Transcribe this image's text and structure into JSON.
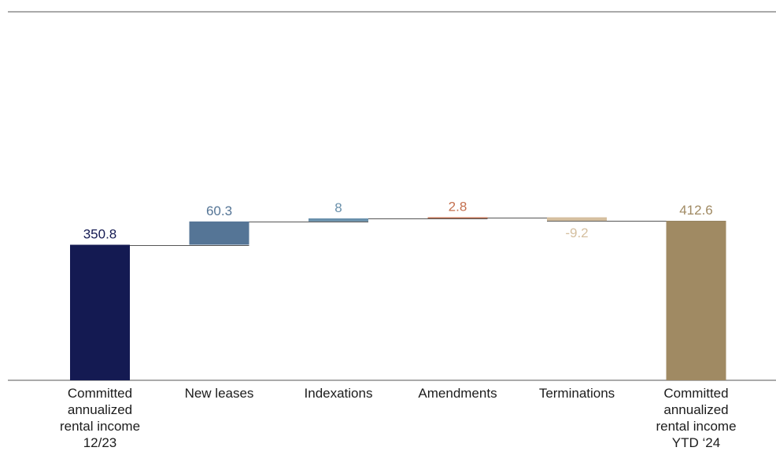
{
  "chart_data": {
    "type": "bar",
    "subtype": "waterfall",
    "categories": [
      "Committed annualized rental income 12/23",
      "New leases",
      "Indexations",
      "Amendments",
      "Terminations",
      "Committed annualized rental income YTD ‘24"
    ],
    "category_lines": [
      [
        "Committed",
        "annualized",
        "rental income",
        "12/23"
      ],
      [
        "New leases"
      ],
      [
        "Indexations"
      ],
      [
        "Amendments"
      ],
      [
        "Terminations"
      ],
      [
        "Committed",
        "annualized",
        "rental income",
        "YTD ‘24"
      ]
    ],
    "values": [
      350.8,
      60.3,
      8,
      2.8,
      -9.2,
      412.6
    ],
    "value_labels": [
      "350.8",
      "60.3",
      "8",
      "2.8",
      "-9.2",
      "412.6"
    ],
    "kinds": [
      "total",
      "delta",
      "delta",
      "delta",
      "delta",
      "total"
    ],
    "colors": [
      "#141a52",
      "#557596",
      "#6990ab",
      "#c4704f",
      "#d5bf9f",
      "#a08a63"
    ],
    "label_colors": [
      "#141a52",
      "#557596",
      "#6990ab",
      "#c4704f",
      "#d5bf9f",
      "#a08a63"
    ],
    "title": "",
    "xlabel": "",
    "ylabel": "",
    "ylim": [
      0,
      475
    ],
    "grid": false,
    "legend": "none"
  }
}
